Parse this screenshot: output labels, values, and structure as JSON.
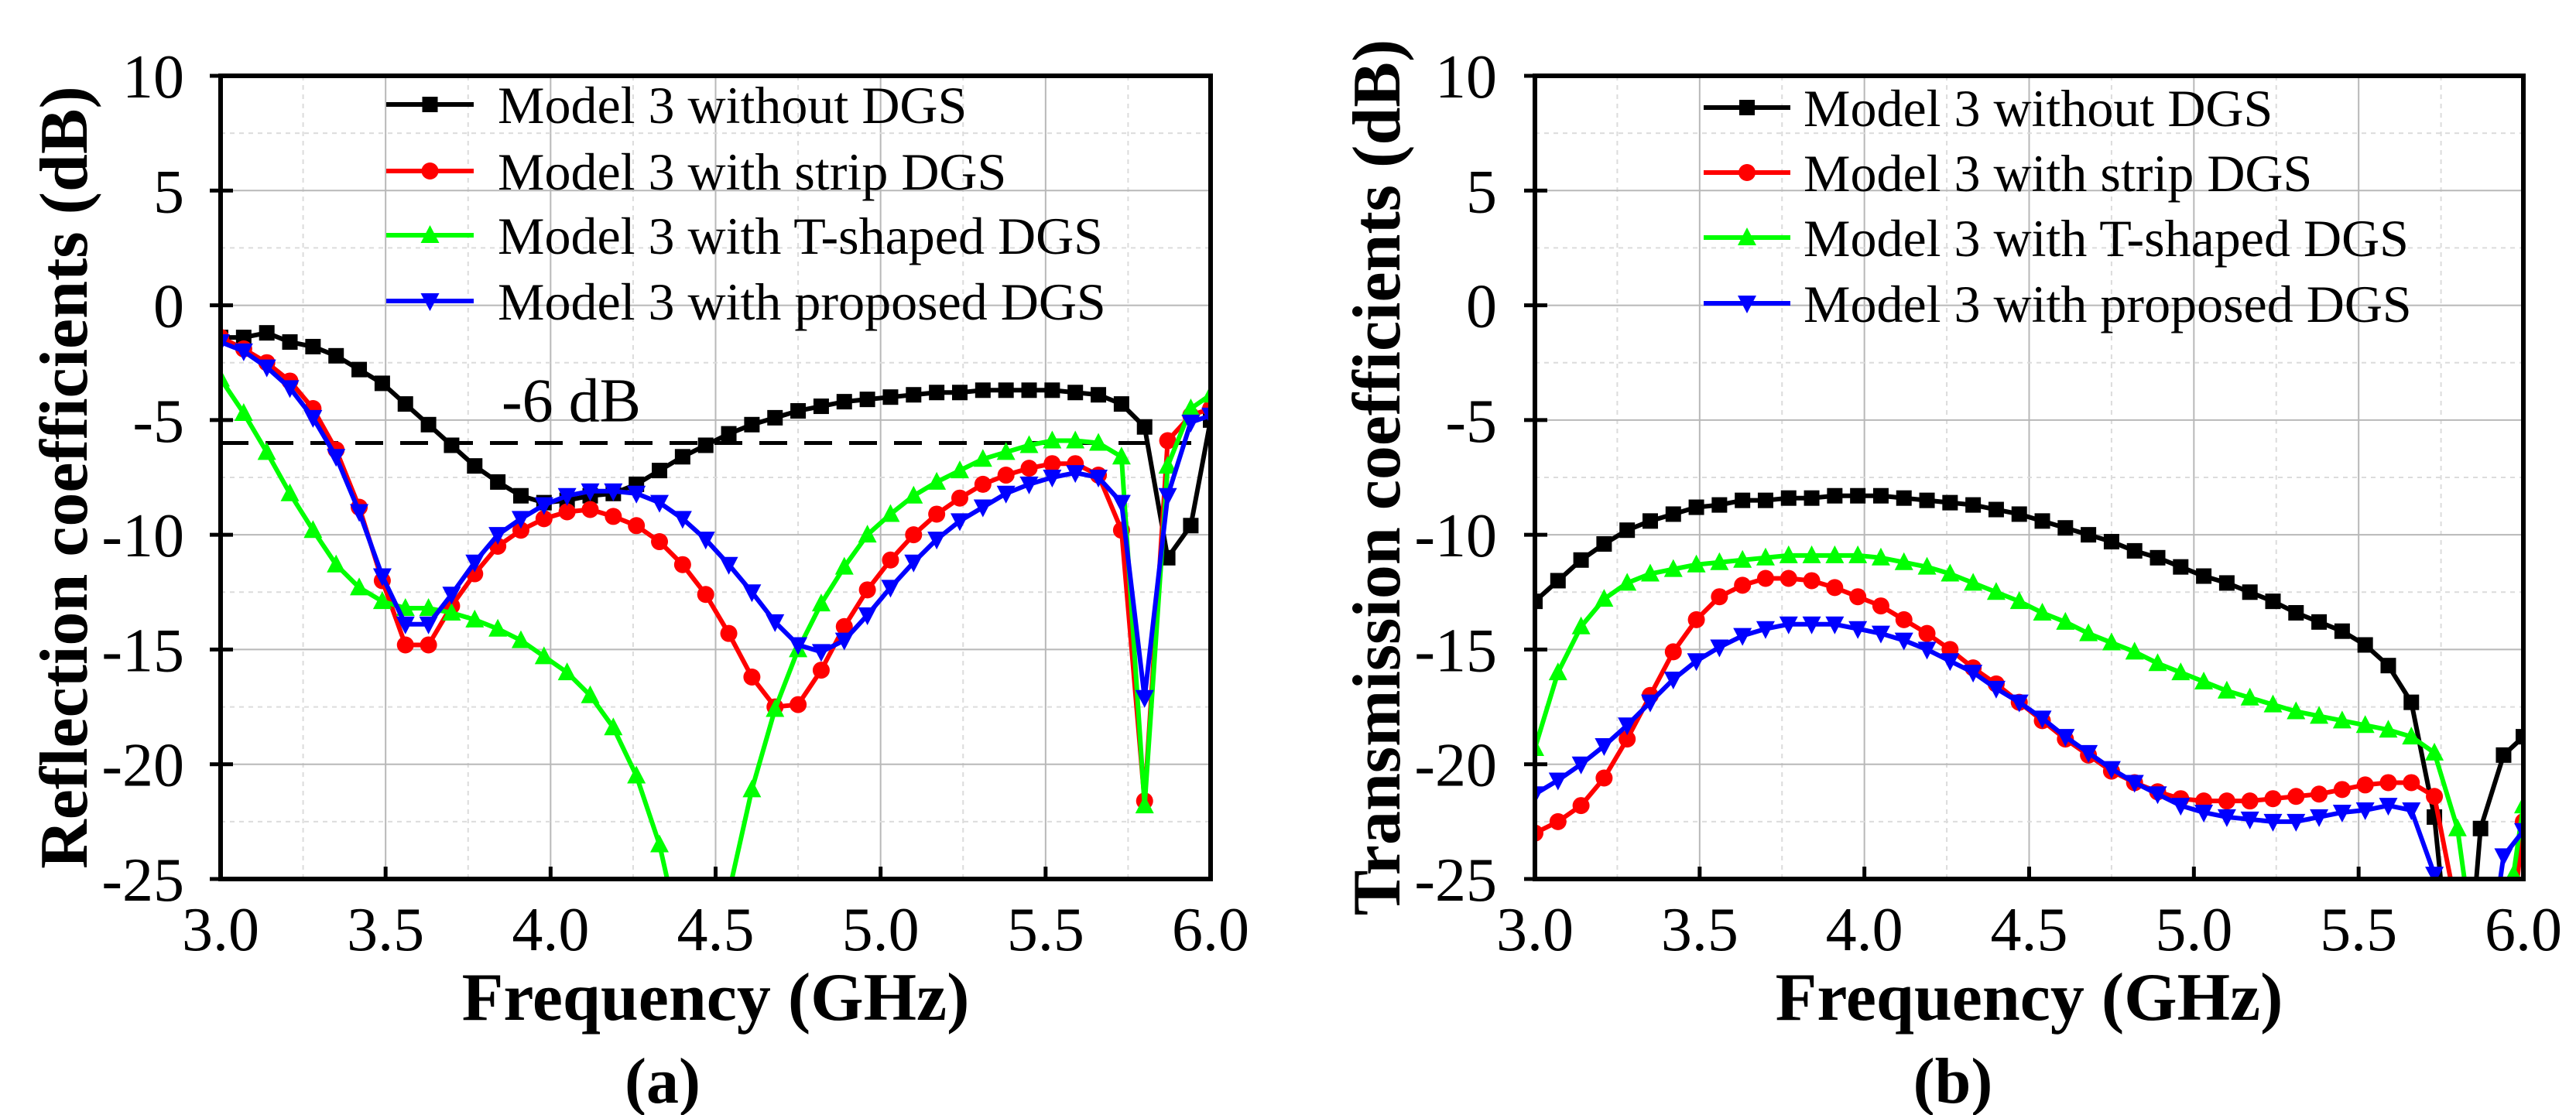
{
  "chart_data": [
    {
      "type": "line",
      "panel_label": "(a)",
      "xlabel": "Frequency (GHz)",
      "ylabel": "Reflection coefficients (dB)",
      "xlim": [
        3.0,
        6.0
      ],
      "ylim": [
        -25,
        10
      ],
      "xticks": [
        "3.0",
        "3.5",
        "4.0",
        "4.5",
        "5.0",
        "5.5",
        "6.0"
      ],
      "yticks": [
        "10",
        "5",
        "0",
        "-5",
        "-10",
        "-15",
        "-20",
        "-25"
      ],
      "grid": true,
      "legend_position": "top",
      "annotation": {
        "text": "-6 dB",
        "reference_line_y": -6
      },
      "x_start": 3.0,
      "x_step": 0.07,
      "series": [
        {
          "name": "Model 3 without DGS",
          "color": "#000000",
          "marker": "square",
          "y": [
            -1.4,
            -1.4,
            -1.2,
            -1.6,
            -1.8,
            -2.2,
            -2.8,
            -3.4,
            -4.3,
            -5.2,
            -6.1,
            -7.0,
            -7.7,
            -8.3,
            -8.6,
            -8.5,
            -8.3,
            -8.2,
            -7.8,
            -7.2,
            -6.6,
            -6.1,
            -5.6,
            -5.2,
            -4.9,
            -4.6,
            -4.4,
            -4.2,
            -4.1,
            -4.0,
            -3.9,
            -3.8,
            -3.8,
            -3.7,
            -3.7,
            -3.7,
            -3.7,
            -3.8,
            -3.9,
            -4.3,
            -5.3,
            -11.0,
            -9.6
          ],
          "tail": [
            [
              6.0,
              -5.0
            ]
          ]
        },
        {
          "name": "Model 3 with strip DGS",
          "color": "#ff0000",
          "marker": "circle",
          "y": [
            -1.4,
            -1.9,
            -2.5,
            -3.3,
            -4.5,
            -6.3,
            -8.8,
            -12.0,
            -14.8,
            -14.8,
            -13.1,
            -11.7,
            -10.5,
            -9.8,
            -9.3,
            -9.0,
            -8.9,
            -9.2,
            -9.6,
            -10.3,
            -11.3,
            -12.6,
            -14.3,
            -16.2,
            -17.5,
            -17.4,
            -15.9,
            -14.0,
            -12.4,
            -11.1,
            -10.0,
            -9.1,
            -8.4,
            -7.8,
            -7.4,
            -7.1,
            -6.9,
            -6.9,
            -7.4,
            -9.8,
            -21.6,
            -5.9,
            -4.8
          ],
          "tail": [
            [
              6.0,
              -4.5
            ]
          ]
        },
        {
          "name": "Model 3 with T-shaped DGS",
          "color": "#00ff00",
          "marker": "triangle-up",
          "y": [
            -3.2,
            -4.7,
            -6.4,
            -8.2,
            -9.8,
            -11.3,
            -12.3,
            -12.9,
            -13.2,
            -13.2,
            -13.4,
            -13.7,
            -14.1,
            -14.6,
            -15.3,
            -16.0,
            -17.0,
            -18.4,
            -20.5,
            -23.5,
            -28.0,
            -28.0,
            -25.6,
            -21.1,
            -17.6,
            -15.0,
            -13.0,
            -11.4,
            -10.0,
            -9.1,
            -8.3,
            -7.7,
            -7.2,
            -6.7,
            -6.4,
            -6.1,
            -5.9,
            -5.9,
            -6.0,
            -6.6,
            -21.8,
            -7.0,
            -4.5
          ],
          "tail": [
            [
              6.0,
              -3.9
            ]
          ]
        },
        {
          "name": "Model 3 with proposed DGS",
          "color": "#0000ff",
          "marker": "triangle-down",
          "y": [
            -1.6,
            -2.0,
            -2.7,
            -3.6,
            -4.9,
            -6.6,
            -9.0,
            -11.8,
            -13.9,
            -13.9,
            -12.6,
            -11.2,
            -10.0,
            -9.3,
            -8.7,
            -8.3,
            -8.1,
            -8.1,
            -8.2,
            -8.6,
            -9.3,
            -10.2,
            -11.3,
            -12.5,
            -13.8,
            -14.8,
            -15.1,
            -14.6,
            -13.5,
            -12.3,
            -11.2,
            -10.2,
            -9.4,
            -8.8,
            -8.2,
            -7.8,
            -7.5,
            -7.3,
            -7.5,
            -8.6,
            -17.1,
            -8.3,
            -5.1
          ],
          "tail": [
            [
              6.0,
              -4.8
            ]
          ]
        }
      ]
    },
    {
      "type": "line",
      "panel_label": "(b)",
      "xlabel": "Frequency (GHz)",
      "ylabel": "Transmission coefficients (dB)",
      "xlim": [
        3.0,
        6.0
      ],
      "ylim": [
        -25,
        10
      ],
      "xticks": [
        "3.0",
        "3.5",
        "4.0",
        "4.5",
        "5.0",
        "5.5",
        "6.0"
      ],
      "yticks": [
        "10",
        "5",
        "0",
        "-5",
        "-10",
        "-15",
        "-20",
        "-25"
      ],
      "grid": true,
      "legend_position": "top",
      "x_start": 3.0,
      "x_step": 0.07,
      "series": [
        {
          "name": "Model 3 without DGS",
          "color": "#000000",
          "marker": "square",
          "y": [
            -12.9,
            -12.0,
            -11.1,
            -10.4,
            -9.8,
            -9.4,
            -9.1,
            -8.8,
            -8.7,
            -8.5,
            -8.5,
            -8.4,
            -8.4,
            -8.3,
            -8.3,
            -8.3,
            -8.4,
            -8.5,
            -8.6,
            -8.7,
            -8.9,
            -9.1,
            -9.4,
            -9.7,
            -10.0,
            -10.3,
            -10.7,
            -11.0,
            -11.4,
            -11.8,
            -12.1,
            -12.5,
            -12.9,
            -13.4,
            -13.8,
            -14.2,
            -14.8,
            -15.7,
            -17.3,
            -22.3
          ],
          "tail": [
            [
              5.77,
              -28
            ],
            [
              5.84,
              -28
            ],
            [
              5.87,
              -22.8
            ],
            [
              5.94,
              -19.6
            ],
            [
              6.0,
              -18.8
            ]
          ]
        },
        {
          "name": "Model 3 with strip DGS",
          "color": "#ff0000",
          "marker": "circle",
          "y": [
            -23.0,
            -22.5,
            -21.8,
            -20.6,
            -18.9,
            -17.0,
            -15.1,
            -13.7,
            -12.7,
            -12.2,
            -11.9,
            -11.9,
            -12.0,
            -12.3,
            -12.7,
            -13.1,
            -13.7,
            -14.3,
            -15.0,
            -15.8,
            -16.5,
            -17.3,
            -18.1,
            -18.9,
            -19.6,
            -20.3,
            -20.8,
            -21.2,
            -21.5,
            -21.6,
            -21.6,
            -21.6,
            -21.5,
            -21.4,
            -21.3,
            -21.1,
            -20.9,
            -20.8,
            -20.8,
            -21.4
          ],
          "tail": [
            [
              5.82,
              -28
            ],
            [
              5.96,
              -28
            ],
            [
              6.0,
              -22.5
            ]
          ]
        },
        {
          "name": "Model 3 with T-shaped DGS",
          "color": "#00ff00",
          "marker": "triangle-up",
          "y": [
            -19.3,
            -16.0,
            -14.0,
            -12.8,
            -12.1,
            -11.7,
            -11.5,
            -11.3,
            -11.2,
            -11.1,
            -11.0,
            -10.9,
            -10.9,
            -10.9,
            -10.9,
            -11.0,
            -11.2,
            -11.4,
            -11.7,
            -12.1,
            -12.5,
            -12.9,
            -13.4,
            -13.8,
            -14.3,
            -14.7,
            -15.1,
            -15.6,
            -16.0,
            -16.4,
            -16.8,
            -17.1,
            -17.4,
            -17.7,
            -17.9,
            -18.1,
            -18.3,
            -18.5,
            -18.8,
            -19.5,
            -22.8
          ],
          "tail": [
            [
              5.85,
              -28
            ],
            [
              5.94,
              -28
            ],
            [
              5.97,
              -24.8
            ],
            [
              6.0,
              -21.8
            ]
          ]
        },
        {
          "name": "Model 3 with proposed DGS",
          "color": "#0000ff",
          "marker": "triangle-down",
          "y": [
            -21.3,
            -20.7,
            -20.0,
            -19.2,
            -18.3,
            -17.3,
            -16.3,
            -15.5,
            -14.9,
            -14.4,
            -14.1,
            -13.9,
            -13.9,
            -13.9,
            -14.1,
            -14.3,
            -14.6,
            -15.0,
            -15.5,
            -16.0,
            -16.7,
            -17.3,
            -18.0,
            -18.8,
            -19.5,
            -20.2,
            -20.8,
            -21.3,
            -21.8,
            -22.1,
            -22.3,
            -22.4,
            -22.5,
            -22.5,
            -22.3,
            -22.1,
            -22.0,
            -21.8,
            -22.0,
            -24.8
          ],
          "tail": [
            [
              5.78,
              -28
            ],
            [
              5.9,
              -28
            ],
            [
              5.94,
              -24.0
            ],
            [
              6.0,
              -22.9
            ]
          ]
        }
      ]
    }
  ]
}
